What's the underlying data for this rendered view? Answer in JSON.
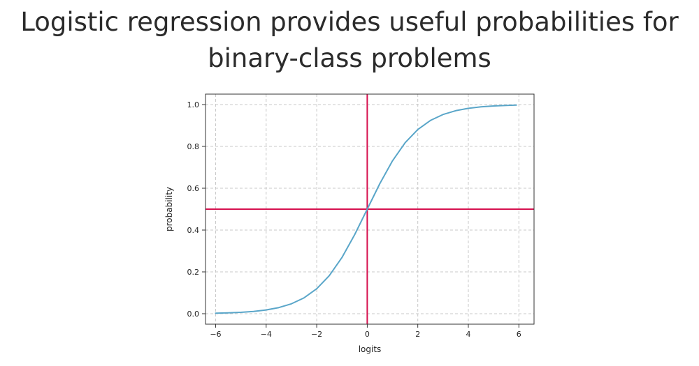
{
  "slide": {
    "title_line1": "Logistic regression provides useful probabilities for",
    "title_line2": "binary-class problems"
  },
  "chart_data": {
    "type": "line",
    "title": "",
    "xlabel": "logits",
    "ylabel": "probability",
    "xlim": [
      -6.4,
      6.6
    ],
    "ylim": [
      -0.05,
      1.05
    ],
    "xticks": [
      -6,
      -4,
      -2,
      0,
      2,
      4,
      6
    ],
    "xtick_labels": [
      "−6",
      "−4",
      "−2",
      "0",
      "2",
      "4",
      "6"
    ],
    "yticks": [
      0.0,
      0.2,
      0.4,
      0.6,
      0.8,
      1.0
    ],
    "ytick_labels": [
      "0.0",
      "0.2",
      "0.4",
      "0.6",
      "0.8",
      "1.0"
    ],
    "grid": true,
    "series": [
      {
        "color": "#5aa6c9",
        "x": [
          -6,
          -5.5,
          -5,
          -4.5,
          -4,
          -3.5,
          -3,
          -2.5,
          -2,
          -1.5,
          -1,
          -0.5,
          0,
          0.5,
          1,
          1.5,
          2,
          2.5,
          3,
          3.5,
          4,
          4.5,
          5,
          5.5,
          5.9
        ],
        "y": [
          0.0025,
          0.0041,
          0.0067,
          0.011,
          0.018,
          0.0293,
          0.0474,
          0.0759,
          0.1192,
          0.1824,
          0.2689,
          0.3775,
          0.5,
          0.6225,
          0.7311,
          0.8176,
          0.8808,
          0.9241,
          0.9526,
          0.9707,
          0.982,
          0.989,
          0.9933,
          0.9959,
          0.9973
        ]
      }
    ],
    "reference_lines": {
      "color": "#d6114f",
      "vertical_x": 0,
      "horizontal_y": 0.5
    }
  }
}
